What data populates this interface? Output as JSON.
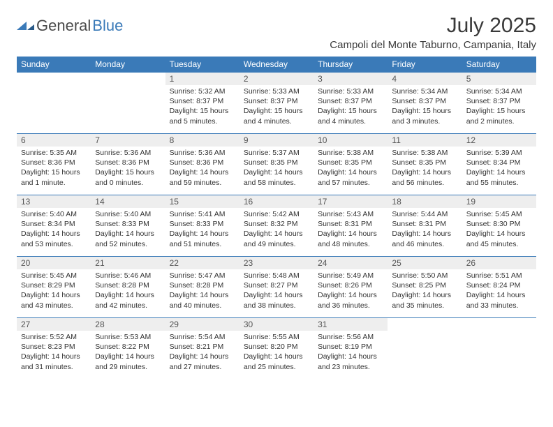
{
  "brand": {
    "name1": "General",
    "name2": "Blue"
  },
  "title": "July 2025",
  "location": "Campoli del Monte Taburno, Campania, Italy",
  "colors": {
    "header_bg": "#3a7ab8",
    "header_text": "#ffffff",
    "day_number_bg": "#eeeeee",
    "day_number_text": "#555555",
    "body_text": "#333333",
    "border": "#3a7ab8",
    "logo_gray": "#4a4a4a",
    "logo_blue": "#3a7ab8"
  },
  "weekdays": [
    "Sunday",
    "Monday",
    "Tuesday",
    "Wednesday",
    "Thursday",
    "Friday",
    "Saturday"
  ],
  "weeks": [
    [
      null,
      null,
      {
        "day": "1",
        "sunrise": "Sunrise: 5:32 AM",
        "sunset": "Sunset: 8:37 PM",
        "daylight": "Daylight: 15 hours and 5 minutes."
      },
      {
        "day": "2",
        "sunrise": "Sunrise: 5:33 AM",
        "sunset": "Sunset: 8:37 PM",
        "daylight": "Daylight: 15 hours and 4 minutes."
      },
      {
        "day": "3",
        "sunrise": "Sunrise: 5:33 AM",
        "sunset": "Sunset: 8:37 PM",
        "daylight": "Daylight: 15 hours and 4 minutes."
      },
      {
        "day": "4",
        "sunrise": "Sunrise: 5:34 AM",
        "sunset": "Sunset: 8:37 PM",
        "daylight": "Daylight: 15 hours and 3 minutes."
      },
      {
        "day": "5",
        "sunrise": "Sunrise: 5:34 AM",
        "sunset": "Sunset: 8:37 PM",
        "daylight": "Daylight: 15 hours and 2 minutes."
      }
    ],
    [
      {
        "day": "6",
        "sunrise": "Sunrise: 5:35 AM",
        "sunset": "Sunset: 8:36 PM",
        "daylight": "Daylight: 15 hours and 1 minute."
      },
      {
        "day": "7",
        "sunrise": "Sunrise: 5:36 AM",
        "sunset": "Sunset: 8:36 PM",
        "daylight": "Daylight: 15 hours and 0 minutes."
      },
      {
        "day": "8",
        "sunrise": "Sunrise: 5:36 AM",
        "sunset": "Sunset: 8:36 PM",
        "daylight": "Daylight: 14 hours and 59 minutes."
      },
      {
        "day": "9",
        "sunrise": "Sunrise: 5:37 AM",
        "sunset": "Sunset: 8:35 PM",
        "daylight": "Daylight: 14 hours and 58 minutes."
      },
      {
        "day": "10",
        "sunrise": "Sunrise: 5:38 AM",
        "sunset": "Sunset: 8:35 PM",
        "daylight": "Daylight: 14 hours and 57 minutes."
      },
      {
        "day": "11",
        "sunrise": "Sunrise: 5:38 AM",
        "sunset": "Sunset: 8:35 PM",
        "daylight": "Daylight: 14 hours and 56 minutes."
      },
      {
        "day": "12",
        "sunrise": "Sunrise: 5:39 AM",
        "sunset": "Sunset: 8:34 PM",
        "daylight": "Daylight: 14 hours and 55 minutes."
      }
    ],
    [
      {
        "day": "13",
        "sunrise": "Sunrise: 5:40 AM",
        "sunset": "Sunset: 8:34 PM",
        "daylight": "Daylight: 14 hours and 53 minutes."
      },
      {
        "day": "14",
        "sunrise": "Sunrise: 5:40 AM",
        "sunset": "Sunset: 8:33 PM",
        "daylight": "Daylight: 14 hours and 52 minutes."
      },
      {
        "day": "15",
        "sunrise": "Sunrise: 5:41 AM",
        "sunset": "Sunset: 8:33 PM",
        "daylight": "Daylight: 14 hours and 51 minutes."
      },
      {
        "day": "16",
        "sunrise": "Sunrise: 5:42 AM",
        "sunset": "Sunset: 8:32 PM",
        "daylight": "Daylight: 14 hours and 49 minutes."
      },
      {
        "day": "17",
        "sunrise": "Sunrise: 5:43 AM",
        "sunset": "Sunset: 8:31 PM",
        "daylight": "Daylight: 14 hours and 48 minutes."
      },
      {
        "day": "18",
        "sunrise": "Sunrise: 5:44 AM",
        "sunset": "Sunset: 8:31 PM",
        "daylight": "Daylight: 14 hours and 46 minutes."
      },
      {
        "day": "19",
        "sunrise": "Sunrise: 5:45 AM",
        "sunset": "Sunset: 8:30 PM",
        "daylight": "Daylight: 14 hours and 45 minutes."
      }
    ],
    [
      {
        "day": "20",
        "sunrise": "Sunrise: 5:45 AM",
        "sunset": "Sunset: 8:29 PM",
        "daylight": "Daylight: 14 hours and 43 minutes."
      },
      {
        "day": "21",
        "sunrise": "Sunrise: 5:46 AM",
        "sunset": "Sunset: 8:28 PM",
        "daylight": "Daylight: 14 hours and 42 minutes."
      },
      {
        "day": "22",
        "sunrise": "Sunrise: 5:47 AM",
        "sunset": "Sunset: 8:28 PM",
        "daylight": "Daylight: 14 hours and 40 minutes."
      },
      {
        "day": "23",
        "sunrise": "Sunrise: 5:48 AM",
        "sunset": "Sunset: 8:27 PM",
        "daylight": "Daylight: 14 hours and 38 minutes."
      },
      {
        "day": "24",
        "sunrise": "Sunrise: 5:49 AM",
        "sunset": "Sunset: 8:26 PM",
        "daylight": "Daylight: 14 hours and 36 minutes."
      },
      {
        "day": "25",
        "sunrise": "Sunrise: 5:50 AM",
        "sunset": "Sunset: 8:25 PM",
        "daylight": "Daylight: 14 hours and 35 minutes."
      },
      {
        "day": "26",
        "sunrise": "Sunrise: 5:51 AM",
        "sunset": "Sunset: 8:24 PM",
        "daylight": "Daylight: 14 hours and 33 minutes."
      }
    ],
    [
      {
        "day": "27",
        "sunrise": "Sunrise: 5:52 AM",
        "sunset": "Sunset: 8:23 PM",
        "daylight": "Daylight: 14 hours and 31 minutes."
      },
      {
        "day": "28",
        "sunrise": "Sunrise: 5:53 AM",
        "sunset": "Sunset: 8:22 PM",
        "daylight": "Daylight: 14 hours and 29 minutes."
      },
      {
        "day": "29",
        "sunrise": "Sunrise: 5:54 AM",
        "sunset": "Sunset: 8:21 PM",
        "daylight": "Daylight: 14 hours and 27 minutes."
      },
      {
        "day": "30",
        "sunrise": "Sunrise: 5:55 AM",
        "sunset": "Sunset: 8:20 PM",
        "daylight": "Daylight: 14 hours and 25 minutes."
      },
      {
        "day": "31",
        "sunrise": "Sunrise: 5:56 AM",
        "sunset": "Sunset: 8:19 PM",
        "daylight": "Daylight: 14 hours and 23 minutes."
      },
      null,
      null
    ]
  ]
}
